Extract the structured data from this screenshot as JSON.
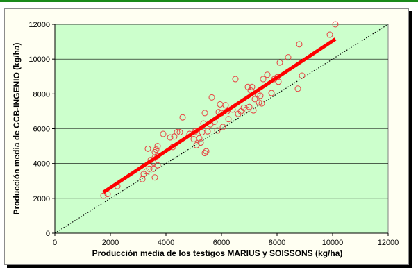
{
  "colors": {
    "plot_background": "#ccffcc",
    "points": "#e84040",
    "regression_line": "#ff0000",
    "identity_line": "#000000",
    "page_rule": "#1a8a1a"
  },
  "chart_data": {
    "type": "scatter",
    "xlabel": "Producción media de los testigos MARIUS y SOISSONS (kg/ha)",
    "ylabel": "Producción media de CCB-INGENIO (kg/ha)",
    "xlim": [
      0,
      12000
    ],
    "ylim": [
      0,
      12000
    ],
    "xticks": [
      0,
      2000,
      4000,
      6000,
      8000,
      10000,
      12000
    ],
    "yticks": [
      0,
      2000,
      4000,
      6000,
      8000,
      10000,
      12000
    ],
    "grid": "horizontal",
    "legend": "none",
    "points": [
      [
        1750,
        2150
      ],
      [
        1900,
        2250
      ],
      [
        2250,
        2700
      ],
      [
        3150,
        3100
      ],
      [
        3200,
        3400
      ],
      [
        3300,
        3550
      ],
      [
        3350,
        4850
      ],
      [
        3400,
        3700
      ],
      [
        3450,
        4200
      ],
      [
        3550,
        3700
      ],
      [
        3550,
        4050
      ],
      [
        3600,
        3200
      ],
      [
        3600,
        4350
      ],
      [
        3600,
        4650
      ],
      [
        3650,
        4800
      ],
      [
        3700,
        3900
      ],
      [
        3700,
        4450
      ],
      [
        3700,
        5000
      ],
      [
        3900,
        5700
      ],
      [
        4150,
        5500
      ],
      [
        4250,
        4950
      ],
      [
        4300,
        5550
      ],
      [
        4400,
        5800
      ],
      [
        4500,
        5800
      ],
      [
        4600,
        6650
      ],
      [
        4850,
        5700
      ],
      [
        5000,
        5400
      ],
      [
        5050,
        5850
      ],
      [
        5100,
        5050
      ],
      [
        5200,
        5450
      ],
      [
        5250,
        5200
      ],
      [
        5300,
        5800
      ],
      [
        5350,
        6300
      ],
      [
        5400,
        4600
      ],
      [
        5400,
        6900
      ],
      [
        5450,
        4700
      ],
      [
        5500,
        5850
      ],
      [
        5600,
        6250
      ],
      [
        5650,
        7800
      ],
      [
        5750,
        6400
      ],
      [
        5850,
        5900
      ],
      [
        5900,
        6950
      ],
      [
        5950,
        7400
      ],
      [
        6000,
        6900
      ],
      [
        6050,
        6100
      ],
      [
        6150,
        7350
      ],
      [
        6200,
        7000
      ],
      [
        6250,
        6550
      ],
      [
        6400,
        7100
      ],
      [
        6500,
        8850
      ],
      [
        6600,
        6850
      ],
      [
        6700,
        7000
      ],
      [
        6800,
        7200
      ],
      [
        6900,
        7100
      ],
      [
        6950,
        8400
      ],
      [
        7000,
        7250
      ],
      [
        7050,
        8200
      ],
      [
        7100,
        8400
      ],
      [
        7150,
        7050
      ],
      [
        7200,
        7700
      ],
      [
        7300,
        8000
      ],
      [
        7350,
        7500
      ],
      [
        7400,
        7900
      ],
      [
        7450,
        7450
      ],
      [
        7500,
        8850
      ],
      [
        7650,
        9100
      ],
      [
        7800,
        8050
      ],
      [
        7900,
        8850
      ],
      [
        8000,
        8950
      ],
      [
        8050,
        8700
      ],
      [
        8100,
        9800
      ],
      [
        8400,
        10100
      ],
      [
        8750,
        8300
      ],
      [
        8800,
        10850
      ],
      [
        8900,
        9050
      ],
      [
        9900,
        11400
      ],
      [
        10100,
        12000
      ]
    ],
    "series": [
      {
        "type": "regression",
        "x": [
          1750,
          10100
        ],
        "y": [
          2350,
          11150
        ]
      },
      {
        "type": "identity",
        "x": [
          0,
          12000
        ],
        "y": [
          0,
          12000
        ]
      }
    ]
  }
}
